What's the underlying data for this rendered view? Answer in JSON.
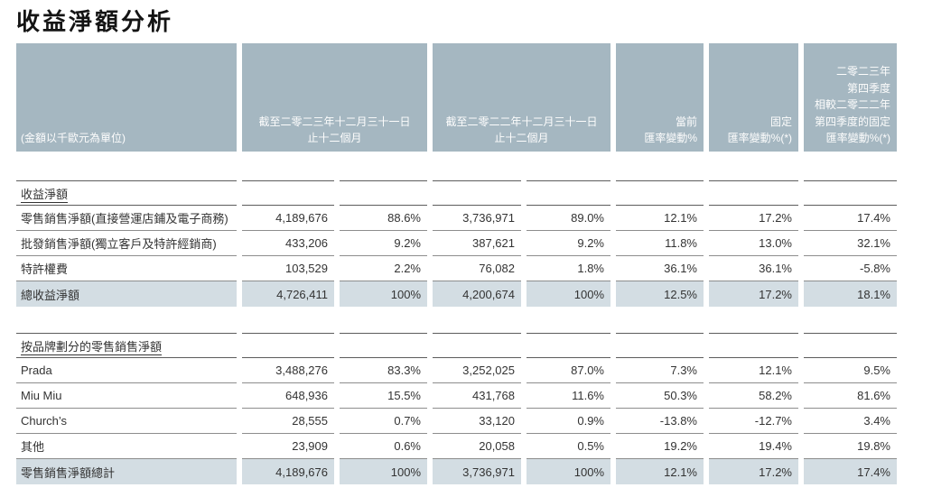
{
  "title": "收益淨額分析",
  "colors": {
    "header_bg": "#a5b7c1",
    "highlight_bg": "#d3dde3"
  },
  "table": {
    "unit_label": "(金額以千歐元為單位)",
    "col_headers": [
      "截至二零二三年十二月三十一日\n止十二個月",
      "截至二零二二年十二月三十一日\n止十二個月",
      "當前\n匯率變動%",
      "固定\n匯率變動%(*)",
      "二零二三年\n第四季度\n相較二零二二年\n第四季度的固定\n匯率變動%(*)"
    ],
    "sections": [
      {
        "heading": "收益淨額",
        "rows": [
          {
            "label": "零售銷售淨額(直接營運店鋪及電子商務)",
            "highlight": false,
            "values": [
              "4,189,676",
              "88.6%",
              "3,736,971",
              "89.0%",
              "12.1%",
              "17.2%",
              "17.4%"
            ]
          },
          {
            "label": "批發銷售淨額(獨立客戶及特許經銷商)",
            "highlight": false,
            "values": [
              "433,206",
              "9.2%",
              "387,621",
              "9.2%",
              "11.8%",
              "13.0%",
              "32.1%"
            ]
          },
          {
            "label": "特許權費",
            "highlight": false,
            "values": [
              "103,529",
              "2.2%",
              "76,082",
              "1.8%",
              "36.1%",
              "36.1%",
              "-5.8%"
            ]
          },
          {
            "label": "總收益淨額",
            "highlight": true,
            "values": [
              "4,726,411",
              "100%",
              "4,200,674",
              "100%",
              "12.5%",
              "17.2%",
              "18.1%"
            ]
          }
        ]
      },
      {
        "heading": "按品牌劃分的零售銷售淨額",
        "rows": [
          {
            "label": "Prada",
            "highlight": false,
            "values": [
              "3,488,276",
              "83.3%",
              "3,252,025",
              "87.0%",
              "7.3%",
              "12.1%",
              "9.5%"
            ]
          },
          {
            "label": "Miu Miu",
            "highlight": false,
            "values": [
              "648,936",
              "15.5%",
              "431,768",
              "11.6%",
              "50.3%",
              "58.2%",
              "81.6%"
            ]
          },
          {
            "label": "Church’s",
            "highlight": false,
            "values": [
              "28,555",
              "0.7%",
              "33,120",
              "0.9%",
              "-13.8%",
              "-12.7%",
              "3.4%"
            ]
          },
          {
            "label": "其他",
            "highlight": false,
            "values": [
              "23,909",
              "0.6%",
              "20,058",
              "0.5%",
              "19.2%",
              "19.4%",
              "19.8%"
            ]
          },
          {
            "label": "零售銷售淨額總計",
            "highlight": true,
            "values": [
              "4,189,676",
              "100%",
              "3,736,971",
              "100%",
              "12.1%",
              "17.2%",
              "17.4%"
            ]
          }
        ]
      }
    ]
  }
}
